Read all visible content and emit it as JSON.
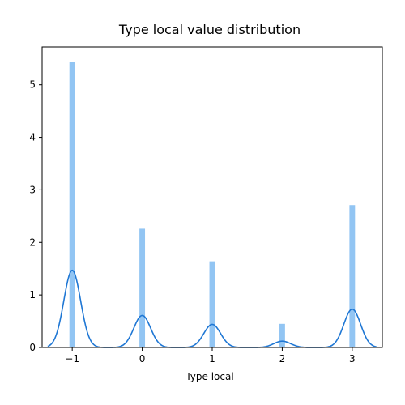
{
  "chart_data": {
    "type": "bar",
    "title": "Type local value distribution",
    "xlabel": "Type local",
    "ylabel": "",
    "xlim": [
      -1.43,
      3.43
    ],
    "ylim": [
      0,
      5.72
    ],
    "x_ticks": [
      -1,
      0,
      1,
      2,
      3
    ],
    "x_tick_labels": [
      "−1",
      "0",
      "1",
      "2",
      "3"
    ],
    "y_ticks": [
      0,
      1,
      2,
      3,
      4,
      5
    ],
    "y_tick_labels": [
      "0",
      "1",
      "2",
      "3",
      "4",
      "5"
    ],
    "grid": false,
    "bar_width": 0.08,
    "series": [
      {
        "kind": "histogram",
        "color": "#92c5f3",
        "bins": [
          {
            "x": -1,
            "value": 5.44
          },
          {
            "x": 0,
            "value": 2.26
          },
          {
            "x": 1,
            "value": 1.64
          },
          {
            "x": 2,
            "value": 0.45
          },
          {
            "x": 3,
            "value": 2.71
          }
        ]
      },
      {
        "kind": "kde",
        "color": "#1f77d4",
        "peaks": [
          {
            "x": -1,
            "value": 1.47
          },
          {
            "x": 0,
            "value": 0.61
          },
          {
            "x": 1,
            "value": 0.44
          },
          {
            "x": 2,
            "value": 0.12
          },
          {
            "x": 3,
            "value": 0.73
          }
        ],
        "bandwidth": 0.12,
        "x_range": [
          -1.35,
          3.35
        ]
      }
    ]
  }
}
